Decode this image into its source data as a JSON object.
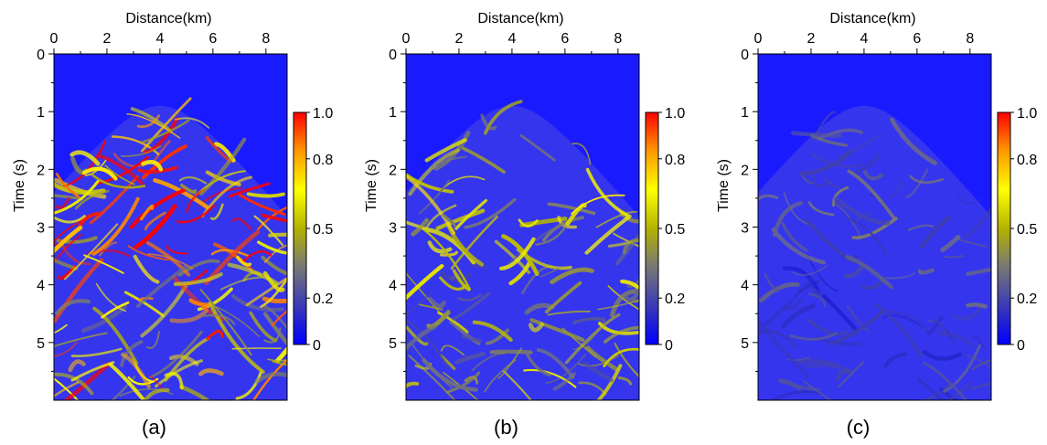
{
  "colors": {
    "background": "#1a1aff",
    "colorbar_stops": [
      "#0000ff",
      "#3a3ab8",
      "#777777",
      "#b3b300",
      "#ffff00",
      "#ff9900",
      "#ff0000"
    ]
  },
  "chart_data": [
    {
      "type": "heatmap",
      "panel_label": "(a)",
      "xlabel": "Distance(km)",
      "ylabel": "Time (s)",
      "xlim": [
        0,
        8.8
      ],
      "ylim": [
        0,
        6
      ],
      "x_ticks": [
        "0",
        "2",
        "4",
        "6",
        "8"
      ],
      "y_ticks": [
        "0",
        "1",
        "2",
        "3",
        "4",
        "5"
      ],
      "colorbar": {
        "range": [
          0,
          1
        ],
        "ticks": [
          "0",
          "0.2",
          "0.5",
          "0.8",
          "1.0"
        ]
      },
      "intensity": 1.0,
      "energy_onset": "hyperbolic arrival with apex near x=4.0 km, t=0.9 s"
    },
    {
      "type": "heatmap",
      "panel_label": "(b)",
      "xlabel": "Distance(km)",
      "ylabel": "Time (s)",
      "xlim": [
        0,
        8.8
      ],
      "ylim": [
        0,
        6
      ],
      "x_ticks": [
        "0",
        "2",
        "4",
        "6",
        "8"
      ],
      "y_ticks": [
        "0",
        "1",
        "2",
        "3",
        "4",
        "5"
      ],
      "colorbar": {
        "range": [
          0,
          1
        ],
        "ticks": [
          "0",
          "0.2",
          "0.5",
          "0.8",
          "1.0"
        ]
      },
      "intensity": 0.6,
      "energy_onset": "hyperbolic arrival with apex near x=4.0 km, t=0.9 s"
    },
    {
      "type": "heatmap",
      "panel_label": "(c)",
      "xlabel": "Distance(km)",
      "ylabel": "Time (s)",
      "xlim": [
        0,
        8.8
      ],
      "ylim": [
        0,
        6
      ],
      "x_ticks": [
        "0",
        "2",
        "4",
        "6",
        "8"
      ],
      "y_ticks": [
        "0",
        "1",
        "2",
        "3",
        "4",
        "5"
      ],
      "colorbar": {
        "range": [
          0,
          1
        ],
        "ticks": [
          "0",
          "0.2",
          "0.5",
          "0.8",
          "1.0"
        ]
      },
      "intensity": 0.3,
      "energy_onset": "hyperbolic arrival with apex near x=4.0 km, t=0.9 s"
    }
  ]
}
